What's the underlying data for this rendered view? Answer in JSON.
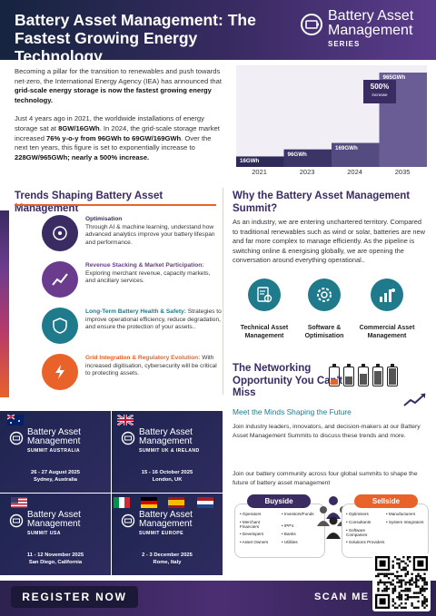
{
  "header": {
    "title": "Battery Asset Management: The Fastest Growing Energy Technology",
    "brand_line1": "Battery Asset",
    "brand_line2": "Management",
    "brand_line3": "SERIES"
  },
  "intro": {
    "p1_a": "Becoming a pillar for the transition to renewables and push towards net-zero, the International Energy Agency (IEA) has announced that ",
    "p1_b": "grid-scale energy storage is now the fastest growing energy technology.",
    "p2_a": "Just 4 years ago in 2021, the worldwide installations of energy storage sat at ",
    "p2_b": "8GW/16GWh",
    "p2_c": ". In 2024, the grid-scale storage market increased ",
    "p2_d": "76% y-o-y from 96GWh to 69GW/169GWh",
    "p2_e": ". Over the next ten years, this figure is set to exponentially increase to ",
    "p2_f": "228GW/965GWh; nearly a 500% increase."
  },
  "chart_data": {
    "type": "area",
    "categories": [
      "2021",
      "2023",
      "2024",
      "2035"
    ],
    "values": [
      16,
      96,
      169,
      965
    ],
    "labels": [
      "16GWh",
      "96GWh",
      "169GWh",
      "965GWh"
    ],
    "badge_big": "500%",
    "badge_small": "increase"
  },
  "trends": {
    "title": "Trends Shaping Battery Asset Management",
    "items": [
      {
        "head": "Optimisation",
        "body": "Through AI & machine learning, understand how advanced analytics improve your battery lifespan and performance.",
        "color": "#3a2b63"
      },
      {
        "head": "Revenue Stacking & Market Participation:",
        "body": " Exploring merchant revenue, capacity markets, and ancillary services.",
        "color": "#6b3b8e"
      },
      {
        "head": "Long-Term Battery Health & Safety:",
        "body": " Strategies to improve operational efficiency, reduce degradation, and ensure the protection of your assets..",
        "color": "#1f7a8c"
      },
      {
        "head": "Grid Integration & Regulatory Evolution:",
        "body": " With increased digitisation, cybersecurity will be critical to protecting assets.",
        "color": "#e8622a"
      }
    ]
  },
  "why": {
    "title": "Why the Battery Asset Management Summit?",
    "body": "As an industry, we are entering unchartered territory. Compared to traditional renewables such as wind or solar, batteries are new and far more complex to manage efficiently. As the pipeline is switching online & energising globally, we are opening the conversation around everything operational..",
    "icons": [
      {
        "label": "Technical Asset Management"
      },
      {
        "label": "Software & Optimisation"
      },
      {
        "label": "Commercial Asset Management"
      }
    ]
  },
  "networking": {
    "title": "The Networking Opportunity You Can't Miss",
    "subtitle": "Meet the Minds Shaping the Future",
    "p1": "Join industry leaders, innovators, and decision-makers at our Battery Asset Management Summits to discuss these trends and more.",
    "p2": "Join our battery community across four global summits to shape the future of battery asset management"
  },
  "summits": [
    {
      "name1": "Battery Asset",
      "name2": "Management",
      "name3": "SUMMIT AUSTRALIA",
      "date": "26 - 27 August 2025",
      "place": "Sydney, Australia"
    },
    {
      "name1": "Battery Asset",
      "name2": "Management",
      "name3": "SUMMIT UK & IRELAND",
      "date": "15 - 16 October 2025",
      "place": "London, UK"
    },
    {
      "name1": "Battery Asset",
      "name2": "Management",
      "name3": "SUMMIT USA",
      "date": "11 - 12 November 2025",
      "place": "San Diego, California"
    },
    {
      "name1": "Battery Asset",
      "name2": "Management",
      "name3": "SUMMIT EUROPE",
      "date": "2 - 3 December 2025",
      "place": "Rome, Italy"
    }
  ],
  "buyside": {
    "title": "Buyside",
    "col1": [
      "Operators",
      "Merchant Financiers",
      "Developers",
      "Asset Owners"
    ],
    "col2": [
      "Investors/Funds",
      "IPP's",
      "Banks",
      "Utilities"
    ]
  },
  "sellside": {
    "title": "Sellside",
    "col1": [
      "Optimisers",
      "Consultants",
      "Software Companies",
      "Solutions Providers"
    ],
    "col2": [
      "Manufacturers",
      "System Integrators"
    ]
  },
  "footer": {
    "register": "REGISTER NOW",
    "scan": "SCAN ME"
  },
  "colors": {
    "navy": "#15243f",
    "purple": "#3a2b63",
    "orange": "#e8622a",
    "teal": "#1f7a8c"
  }
}
